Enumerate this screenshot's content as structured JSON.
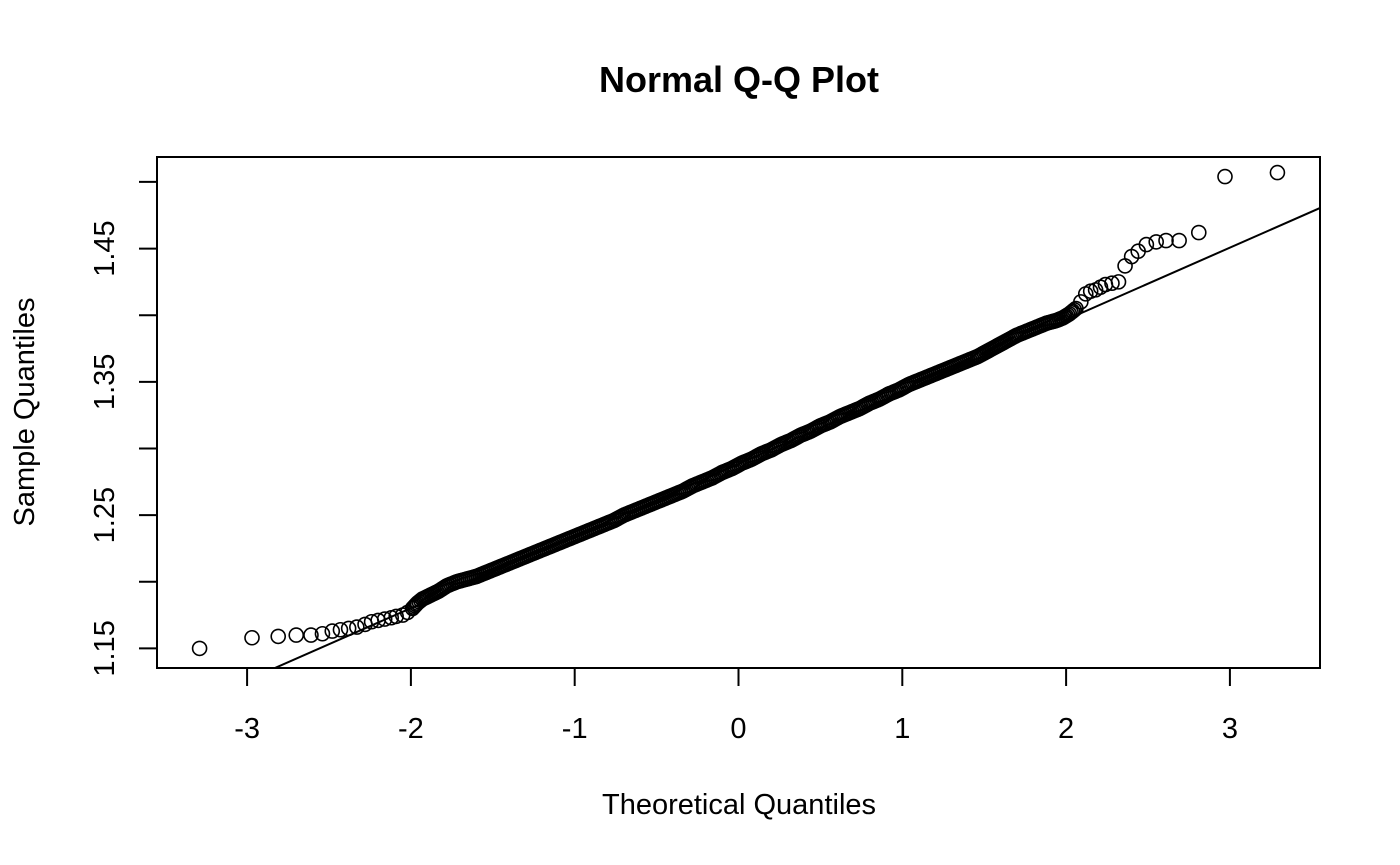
{
  "chart_data": {
    "type": "scatter",
    "title": "Normal Q-Q Plot",
    "xlabel": "Theoretical Quantiles",
    "ylabel": "Sample Quantiles",
    "xlim": [
      -3.55,
      3.55
    ],
    "ylim": [
      1.1353,
      1.5187
    ],
    "x_ticks": [
      -3,
      -2,
      -1,
      0,
      1,
      2,
      3
    ],
    "x_tick_labels": [
      "-3",
      "-2",
      "-1",
      "0",
      "1",
      "2",
      "3"
    ],
    "y_ticks": [
      1.15,
      1.2,
      1.25,
      1.3,
      1.35,
      1.4,
      1.45,
      1.5
    ],
    "y_tick_labels": [
      "1.15",
      "",
      "1.25",
      "",
      "1.35",
      "",
      "1.45",
      ""
    ],
    "grid": false,
    "reference_line": {
      "intercept": 1.2884,
      "slope": 0.0541
    },
    "points": [
      [
        -3.29,
        1.15
      ],
      [
        -2.97,
        1.158
      ],
      [
        -2.81,
        1.159
      ],
      [
        -2.7,
        1.16
      ],
      [
        -2.61,
        1.16
      ],
      [
        -2.54,
        1.161
      ],
      [
        -2.48,
        1.163
      ],
      [
        -2.43,
        1.164
      ],
      [
        -2.38,
        1.165
      ],
      [
        -2.33,
        1.166
      ],
      [
        -2.28,
        1.168
      ],
      [
        -2.24,
        1.17
      ],
      [
        -2.2,
        1.171
      ],
      [
        -2.16,
        1.172
      ],
      [
        -2.12,
        1.173
      ],
      [
        -2.09,
        1.174
      ],
      [
        -2.05,
        1.175
      ],
      [
        -2.02,
        1.177
      ],
      [
        -1.99,
        1.18
      ],
      [
        -1.96,
        1.184
      ],
      [
        -1.93,
        1.187
      ],
      [
        -1.88,
        1.19
      ],
      [
        -1.83,
        1.193
      ],
      [
        -1.78,
        1.197
      ],
      [
        -1.72,
        1.2
      ],
      [
        -1.66,
        1.202
      ],
      [
        -1.6,
        1.204
      ],
      [
        -1.54,
        1.207
      ],
      [
        -1.48,
        1.21
      ],
      [
        -1.42,
        1.213
      ],
      [
        -1.36,
        1.216
      ],
      [
        -1.3,
        1.219
      ],
      [
        -1.24,
        1.222
      ],
      [
        -1.18,
        1.225
      ],
      [
        -1.12,
        1.228
      ],
      [
        -1.06,
        1.231
      ],
      [
        -1.0,
        1.234
      ],
      [
        -0.94,
        1.237
      ],
      [
        -0.88,
        1.24
      ],
      [
        -0.82,
        1.243
      ],
      [
        -0.76,
        1.246
      ],
      [
        -0.7,
        1.25
      ],
      [
        -0.64,
        1.253
      ],
      [
        -0.58,
        1.256
      ],
      [
        -0.52,
        1.259
      ],
      [
        -0.46,
        1.262
      ],
      [
        -0.4,
        1.265
      ],
      [
        -0.34,
        1.268
      ],
      [
        -0.28,
        1.272
      ],
      [
        -0.22,
        1.275
      ],
      [
        -0.16,
        1.278
      ],
      [
        -0.1,
        1.282
      ],
      [
        -0.04,
        1.285
      ],
      [
        0.02,
        1.289
      ],
      [
        0.08,
        1.292
      ],
      [
        0.14,
        1.296
      ],
      [
        0.2,
        1.299
      ],
      [
        0.26,
        1.303
      ],
      [
        0.32,
        1.306
      ],
      [
        0.38,
        1.31
      ],
      [
        0.44,
        1.313
      ],
      [
        0.5,
        1.317
      ],
      [
        0.56,
        1.32
      ],
      [
        0.62,
        1.324
      ],
      [
        0.68,
        1.327
      ],
      [
        0.74,
        1.33
      ],
      [
        0.8,
        1.334
      ],
      [
        0.86,
        1.337
      ],
      [
        0.92,
        1.341
      ],
      [
        0.98,
        1.344
      ],
      [
        1.04,
        1.348
      ],
      [
        1.1,
        1.351
      ],
      [
        1.16,
        1.354
      ],
      [
        1.22,
        1.357
      ],
      [
        1.28,
        1.36
      ],
      [
        1.34,
        1.363
      ],
      [
        1.4,
        1.366
      ],
      [
        1.46,
        1.369
      ],
      [
        1.52,
        1.373
      ],
      [
        1.58,
        1.377
      ],
      [
        1.64,
        1.381
      ],
      [
        1.7,
        1.385
      ],
      [
        1.76,
        1.388
      ],
      [
        1.82,
        1.391
      ],
      [
        1.88,
        1.394
      ],
      [
        1.94,
        1.396
      ],
      [
        1.98,
        1.398
      ],
      [
        2.02,
        1.401
      ],
      [
        2.06,
        1.405
      ],
      [
        2.09,
        1.41
      ],
      [
        2.12,
        1.416
      ],
      [
        2.15,
        1.418
      ],
      [
        2.18,
        1.419
      ],
      [
        2.21,
        1.421
      ],
      [
        2.24,
        1.423
      ],
      [
        2.28,
        1.424
      ],
      [
        2.32,
        1.425
      ],
      [
        2.36,
        1.437
      ],
      [
        2.4,
        1.444
      ],
      [
        2.44,
        1.448
      ],
      [
        2.49,
        1.453
      ],
      [
        2.55,
        1.455
      ],
      [
        2.61,
        1.456
      ],
      [
        2.69,
        1.456
      ],
      [
        2.81,
        1.462
      ],
      [
        2.97,
        1.504
      ],
      [
        3.29,
        1.507
      ]
    ]
  }
}
